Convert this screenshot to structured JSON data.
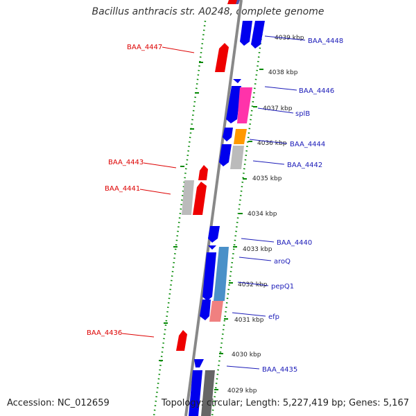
{
  "title": "Bacillus anthracis str. A0248, complete genome",
  "footer": {
    "accession": "Accession: NC_012659",
    "info": "Topology: circular; Length: 5,227,419 bp; Genes: 5,167"
  },
  "colors": {
    "forward_gene": "#0000ee",
    "reverse_gene": "#ee0000",
    "label_forward": "#1a1ab8",
    "label_reverse": "#dd0000",
    "backbone": "#8c8c8c",
    "dots": "#008800",
    "splB": "#ff33aa",
    "BAA_4444_feature": "#ff9900",
    "aroQ": "#4a90c8",
    "efp": "#f08080",
    "grey_feature": "#bbbbbb"
  },
  "kbp_ticks": [
    "4039 kbp",
    "4038 kbp",
    "4037 kbp",
    "4036 kbp",
    "4035 kbp",
    "4034 kbp",
    "4033 kbp",
    "4032 kbp",
    "4031 kbp",
    "4030 kbp",
    "4029 kbp"
  ],
  "genes_right": [
    "BAA_4448",
    "BAA_4446",
    "splB",
    "BAA_4444",
    "BAA_4442",
    "BAA_4440",
    "aroQ",
    "pepQ1",
    "efp",
    "BAA_4435"
  ],
  "genes_left": [
    "BAA_4447",
    "BAA_4443",
    "BAA_4441",
    "BAA_4436"
  ]
}
